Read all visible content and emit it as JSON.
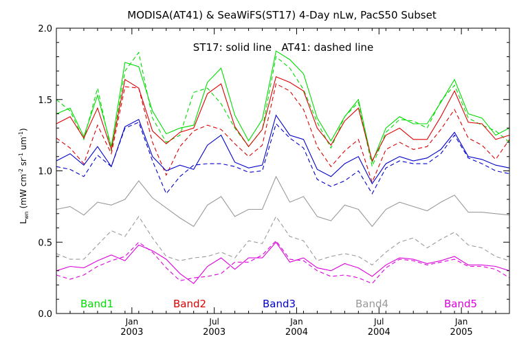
{
  "chart_data": {
    "type": "line",
    "title": "MODISA(AT41) & SeaWiFS(ST17) 4-Day nLw, PacS50 Subset",
    "annotation": "ST17: solid line   AT41: dashed line",
    "ylabel_main": "L",
    "ylabel_sub": "wn",
    "ylabel_units": "(mW cm",
    "ylabel_units_exp1": "-2",
    "ylabel_units_mid": " sr",
    "ylabel_units_exp2": "-1",
    "ylabel_units_mid2": " um",
    "ylabel_units_exp3": "-1",
    "ylabel_units_end": ")",
    "ylim": [
      0.0,
      2.0
    ],
    "yticks": [
      0.0,
      0.5,
      1.0,
      1.5,
      2.0
    ],
    "ytick_labels": [
      "0.0",
      "0.5",
      "1.0",
      "1.5",
      "2.0"
    ],
    "xlim": [
      0,
      33
    ],
    "xticks": [
      {
        "pos": 5.5,
        "month": "Jan",
        "year": "2003"
      },
      {
        "pos": 11.5,
        "month": "Jul",
        "year": "2003"
      },
      {
        "pos": 17.5,
        "month": "Jan",
        "year": "2004"
      },
      {
        "pos": 23.5,
        "month": "Jul",
        "year": "2004"
      },
      {
        "pos": 29.5,
        "month": "Jan",
        "year": "2005"
      }
    ],
    "x": [
      0,
      1,
      2,
      3,
      4,
      5,
      6,
      7,
      8,
      9,
      10,
      11,
      12,
      13,
      14,
      15,
      16,
      17,
      18,
      19,
      20,
      21,
      22,
      23,
      24,
      25,
      26,
      27,
      28,
      29,
      30,
      31,
      32,
      33
    ],
    "legend_placement": "bottom",
    "series": [
      {
        "name": "Band1",
        "color": "#00dd00",
        "style": "solid",
        "values": [
          1.4,
          1.44,
          1.24,
          1.53,
          1.17,
          1.76,
          1.73,
          1.42,
          1.26,
          1.3,
          1.32,
          1.62,
          1.72,
          1.39,
          1.21,
          1.36,
          1.84,
          1.78,
          1.68,
          1.37,
          1.21,
          1.38,
          1.5,
          1.06,
          1.3,
          1.38,
          1.33,
          1.33,
          1.48,
          1.64,
          1.4,
          1.37,
          1.25,
          1.3
        ]
      },
      {
        "name": "Band1",
        "color": "#00dd00",
        "style": "dashed",
        "values": [
          1.5,
          1.42,
          1.22,
          1.58,
          1.14,
          1.7,
          1.83,
          1.37,
          1.2,
          1.25,
          1.55,
          1.58,
          1.47,
          1.3,
          1.17,
          1.29,
          1.8,
          1.72,
          1.57,
          1.34,
          1.16,
          1.38,
          1.48,
          1.03,
          1.27,
          1.36,
          1.35,
          1.3,
          1.49,
          1.6,
          1.37,
          1.32,
          1.28,
          1.2
        ]
      },
      {
        "name": "Band2",
        "color": "#dd0000",
        "style": "solid",
        "values": [
          1.33,
          1.38,
          1.23,
          1.44,
          1.15,
          1.64,
          1.58,
          1.28,
          1.19,
          1.27,
          1.3,
          1.54,
          1.61,
          1.31,
          1.17,
          1.29,
          1.66,
          1.62,
          1.56,
          1.3,
          1.18,
          1.35,
          1.44,
          1.07,
          1.25,
          1.3,
          1.22,
          1.22,
          1.38,
          1.56,
          1.34,
          1.33,
          1.22,
          1.25
        ]
      },
      {
        "name": "Band2",
        "color": "#dd0000",
        "style": "dashed",
        "values": [
          1.23,
          1.16,
          1.05,
          1.32,
          1.12,
          1.59,
          1.58,
          1.2,
          0.97,
          1.17,
          1.28,
          1.32,
          1.29,
          1.19,
          1.1,
          1.18,
          1.61,
          1.56,
          1.43,
          1.17,
          1.03,
          1.14,
          1.22,
          0.92,
          1.15,
          1.2,
          1.15,
          1.17,
          1.29,
          1.43,
          1.23,
          1.18,
          1.08,
          1.22
        ]
      },
      {
        "name": "Band3",
        "color": "#0000cc",
        "style": "solid",
        "values": [
          1.07,
          1.12,
          1.04,
          1.17,
          1.03,
          1.31,
          1.36,
          1.1,
          1.0,
          1.04,
          1.01,
          1.18,
          1.25,
          1.06,
          1.02,
          1.04,
          1.39,
          1.25,
          1.22,
          1.01,
          0.96,
          1.05,
          1.1,
          0.91,
          1.05,
          1.1,
          1.07,
          1.09,
          1.15,
          1.27,
          1.1,
          1.08,
          1.04,
          1.02
        ]
      },
      {
        "name": "Band3",
        "color": "#0000cc",
        "style": "dashed",
        "values": [
          1.03,
          1.01,
          0.96,
          1.11,
          1.03,
          1.3,
          1.34,
          1.07,
          0.84,
          0.96,
          1.04,
          1.05,
          1.05,
          1.03,
          0.99,
          1.0,
          1.33,
          1.23,
          1.16,
          0.94,
          0.89,
          0.93,
          1.0,
          0.84,
          1.02,
          1.07,
          1.05,
          1.05,
          1.12,
          1.25,
          1.09,
          1.05,
          1.0,
          0.98
        ]
      },
      {
        "name": "Band4",
        "color": "#999999",
        "style": "solid",
        "values": [
          0.73,
          0.75,
          0.69,
          0.78,
          0.76,
          0.8,
          0.93,
          0.81,
          0.74,
          0.67,
          0.61,
          0.76,
          0.82,
          0.68,
          0.73,
          0.73,
          0.96,
          0.78,
          0.82,
          0.68,
          0.65,
          0.76,
          0.73,
          0.61,
          0.73,
          0.78,
          0.75,
          0.72,
          0.78,
          0.83,
          0.71,
          0.71,
          0.7,
          0.69
        ]
      },
      {
        "name": "Band4",
        "color": "#999999",
        "style": "dashed",
        "values": [
          0.42,
          0.38,
          0.38,
          0.48,
          0.58,
          0.54,
          0.68,
          0.53,
          0.4,
          0.37,
          0.39,
          0.4,
          0.43,
          0.39,
          0.51,
          0.49,
          0.68,
          0.54,
          0.51,
          0.37,
          0.4,
          0.42,
          0.4,
          0.34,
          0.43,
          0.5,
          0.53,
          0.46,
          0.52,
          0.57,
          0.48,
          0.46,
          0.4,
          0.37
        ]
      },
      {
        "name": "Band5",
        "color": "#dd00dd",
        "style": "solid",
        "values": [
          0.3,
          0.33,
          0.32,
          0.37,
          0.41,
          0.37,
          0.48,
          0.44,
          0.38,
          0.28,
          0.21,
          0.33,
          0.39,
          0.31,
          0.39,
          0.39,
          0.5,
          0.36,
          0.39,
          0.32,
          0.3,
          0.35,
          0.32,
          0.26,
          0.34,
          0.39,
          0.38,
          0.35,
          0.37,
          0.4,
          0.34,
          0.34,
          0.33,
          0.3
        ]
      },
      {
        "name": "Band5",
        "color": "#dd00dd",
        "style": "dashed",
        "values": [
          0.27,
          0.24,
          0.27,
          0.33,
          0.37,
          0.4,
          0.5,
          0.43,
          0.32,
          0.23,
          0.25,
          0.26,
          0.28,
          0.36,
          0.36,
          0.41,
          0.51,
          0.38,
          0.37,
          0.3,
          0.26,
          0.27,
          0.25,
          0.21,
          0.32,
          0.38,
          0.37,
          0.34,
          0.36,
          0.38,
          0.33,
          0.33,
          0.31,
          0.25
        ]
      }
    ],
    "legend": [
      {
        "label": "Band1",
        "color": "#00dd00"
      },
      {
        "label": "Band2",
        "color": "#dd0000"
      },
      {
        "label": "Band3",
        "color": "#0000cc"
      },
      {
        "label": "Band4",
        "color": "#999999"
      },
      {
        "label": "Band5",
        "color": "#dd00dd"
      }
    ]
  }
}
